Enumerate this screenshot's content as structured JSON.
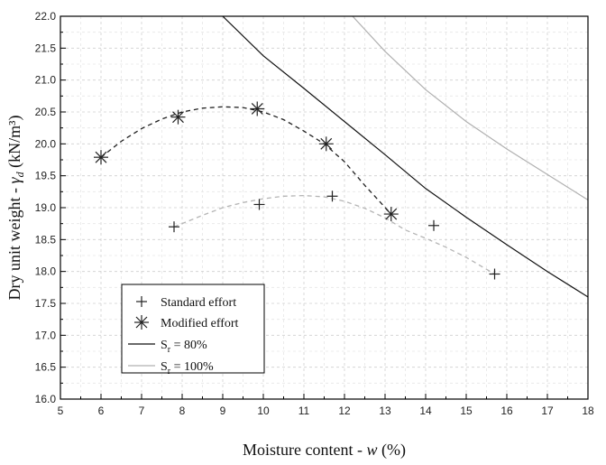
{
  "chart_data": {
    "type": "scatter",
    "title": "",
    "xlabel_prefix": "Moisture content - ",
    "xlabel_var": "w",
    "xlabel_suffix": " (%)",
    "ylabel_prefix": "Dry unit weight - ",
    "ylabel_var": "γ",
    "ylabel_sub": "d",
    "ylabel_suffix": " (kN/m³)",
    "xlim": [
      5,
      18
    ],
    "ylim": [
      16.0,
      22.0
    ],
    "xticks": [
      5,
      6,
      7,
      8,
      9,
      10,
      11,
      12,
      13,
      14,
      15,
      16,
      17,
      18
    ],
    "yticks": [
      16.0,
      16.5,
      17.0,
      17.5,
      18.0,
      18.5,
      19.0,
      19.5,
      20.0,
      20.5,
      21.0,
      21.5,
      22.0
    ],
    "grid": true,
    "legend_position": "bottom-left",
    "series": [
      {
        "name": "Standard effort",
        "marker": "plus",
        "color": "#222222",
        "points": [
          [
            7.8,
            18.7
          ],
          [
            9.9,
            19.05
          ],
          [
            11.7,
            19.18
          ],
          [
            14.2,
            18.72
          ],
          [
            15.7,
            17.96
          ]
        ],
        "fit": [
          [
            7.8,
            18.7
          ],
          [
            8.5,
            18.88
          ],
          [
            9.0,
            19.0
          ],
          [
            9.5,
            19.08
          ],
          [
            10.0,
            19.14
          ],
          [
            10.5,
            19.18
          ],
          [
            11.0,
            19.19
          ],
          [
            11.5,
            19.17
          ],
          [
            12.0,
            19.1
          ],
          [
            12.5,
            18.99
          ],
          [
            13.0,
            18.84
          ],
          [
            13.5,
            18.65
          ],
          [
            14.0,
            18.52
          ],
          [
            14.5,
            18.38
          ],
          [
            15.0,
            18.22
          ],
          [
            15.7,
            17.96
          ]
        ]
      },
      {
        "name": "Modified effort",
        "marker": "star",
        "color": "#222222",
        "points": [
          [
            6.0,
            19.79
          ],
          [
            7.9,
            20.42
          ],
          [
            9.85,
            20.55
          ],
          [
            11.55,
            20.0
          ],
          [
            13.15,
            18.9
          ]
        ],
        "fit": [
          [
            6.0,
            19.79
          ],
          [
            6.5,
            20.04
          ],
          [
            7.0,
            20.24
          ],
          [
            7.5,
            20.39
          ],
          [
            8.0,
            20.5
          ],
          [
            8.5,
            20.56
          ],
          [
            9.0,
            20.58
          ],
          [
            9.5,
            20.57
          ],
          [
            10.0,
            20.5
          ],
          [
            10.5,
            20.38
          ],
          [
            11.0,
            20.2
          ],
          [
            11.5,
            20.0
          ],
          [
            12.0,
            19.72
          ],
          [
            12.5,
            19.35
          ],
          [
            13.15,
            18.9
          ]
        ]
      }
    ],
    "lines": [
      {
        "name": "Sr = 80%",
        "label_main": "S",
        "label_sub": "r",
        "label_rest": " = 80%",
        "color": "#111111",
        "points": [
          [
            9.0,
            22.0
          ],
          [
            10.0,
            21.38
          ],
          [
            11.0,
            20.87
          ],
          [
            12.0,
            20.35
          ],
          [
            13.0,
            19.83
          ],
          [
            14.0,
            19.3
          ],
          [
            15.0,
            18.85
          ],
          [
            16.0,
            18.42
          ],
          [
            17.0,
            18.0
          ],
          [
            18.0,
            17.6
          ]
        ]
      },
      {
        "name": "Sr = 100%",
        "label_main": "S",
        "label_sub": "r",
        "label_rest": " = 100%",
        "color": "#b0b0b0",
        "points": [
          [
            12.2,
            22.0
          ],
          [
            13.0,
            21.45
          ],
          [
            14.0,
            20.85
          ],
          [
            15.0,
            20.35
          ],
          [
            16.0,
            19.92
          ],
          [
            17.0,
            19.52
          ],
          [
            18.0,
            19.12
          ]
        ]
      }
    ]
  }
}
